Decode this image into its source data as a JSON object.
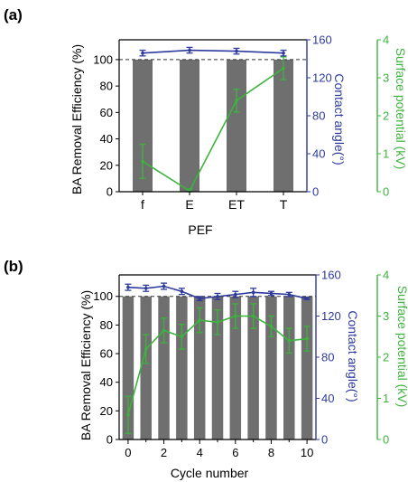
{
  "colors": {
    "bar": "#6f6f6f",
    "contact_angle": "#2e3a9e",
    "surface_potential": "#3cb43c",
    "axis": "#000000",
    "reference_line": "#333333"
  },
  "chart_data": [
    {
      "panel_label": "(a)",
      "type": "bar",
      "title": "",
      "xlabel": "PEF",
      "categories": [
        "f",
        "E",
        "ET",
        "T"
      ],
      "y_left": {
        "label": "BA Removal Efficiency (%)",
        "ylim": [
          0,
          115
        ],
        "ticks": [
          0,
          20,
          40,
          60,
          80,
          100
        ]
      },
      "y_right1": {
        "label": "Contact angle(°)",
        "ylim": [
          0,
          160
        ],
        "ticks": [
          0,
          40,
          80,
          120,
          160
        ]
      },
      "y_right2": {
        "label": "Surface potential (kV)",
        "ylim": [
          0,
          4
        ],
        "ticks": [
          0,
          1,
          2,
          3,
          4
        ]
      },
      "reference_line": 100,
      "grid": false,
      "series": [
        {
          "kind": "bar",
          "axis": "left",
          "values": [
            100,
            100,
            100,
            100
          ]
        },
        {
          "kind": "line",
          "axis": "right1",
          "values": [
            146,
            149,
            148,
            146
          ],
          "errors": [
            3,
            3,
            3,
            3
          ]
        },
        {
          "kind": "line",
          "axis": "right2",
          "values": [
            0.8,
            0.02,
            2.4,
            3.25
          ],
          "errors": [
            0.45,
            0.05,
            0.3,
            0.3
          ]
        }
      ]
    },
    {
      "panel_label": "(b)",
      "type": "bar",
      "title": "",
      "xlabel": "Cycle number",
      "x": [
        0,
        1,
        2,
        3,
        4,
        5,
        6,
        7,
        8,
        9,
        10
      ],
      "x_ticks": [
        0,
        2,
        4,
        6,
        8,
        10
      ],
      "y_left": {
        "label": "BA Removal Efficiency (%)",
        "ylim": [
          0,
          115
        ],
        "ticks": [
          0,
          20,
          40,
          60,
          80,
          100
        ]
      },
      "y_right1": {
        "label": "Contact angle(°)",
        "ylim": [
          0,
          160
        ],
        "ticks": [
          0,
          40,
          80,
          120,
          160
        ]
      },
      "y_right2": {
        "label": "Surface potential (kV)",
        "ylim": [
          0,
          4
        ],
        "ticks": [
          0,
          1,
          2,
          3,
          4
        ]
      },
      "reference_line": 100,
      "grid": false,
      "series": [
        {
          "kind": "bar",
          "axis": "left",
          "values": [
            100,
            100,
            100,
            100,
            100,
            100,
            100,
            100,
            100,
            100,
            100
          ]
        },
        {
          "kind": "line",
          "axis": "right1",
          "values": [
            148,
            147,
            149,
            144,
            137,
            139,
            141,
            143,
            142,
            141,
            137
          ],
          "errors": [
            3,
            3,
            3,
            3,
            2,
            3,
            3,
            4,
            2,
            2,
            1
          ]
        },
        {
          "kind": "line",
          "axis": "right2",
          "values": [
            0.6,
            2.2,
            2.65,
            2.5,
            2.9,
            2.85,
            3.0,
            3.0,
            2.75,
            2.4,
            2.45
          ],
          "errors": [
            0.45,
            0.35,
            0.3,
            0.3,
            0.3,
            0.3,
            0.3,
            0.3,
            0.25,
            0.3,
            0.3
          ]
        }
      ]
    }
  ]
}
